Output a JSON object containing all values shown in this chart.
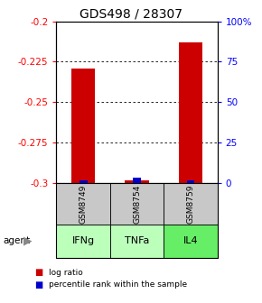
{
  "title": "GDS498 / 28307",
  "samples": [
    "GSM8749",
    "GSM8754",
    "GSM8759"
  ],
  "agents": [
    "IFNg",
    "TNFa",
    "IL4"
  ],
  "log_ratios": [
    -0.229,
    -0.298,
    -0.213
  ],
  "percentile_ranks": [
    2.0,
    3.5,
    2.0
  ],
  "ylim_left": [
    -0.3,
    -0.2
  ],
  "ylim_right": [
    0,
    100
  ],
  "yticks_left": [
    -0.3,
    -0.275,
    -0.25,
    -0.225,
    -0.2
  ],
  "yticks_right": [
    0,
    25,
    50,
    75,
    100
  ],
  "ytick_labels_left": [
    "-0.3",
    "-0.275",
    "-0.25",
    "-0.225",
    "-0.2"
  ],
  "ytick_labels_right": [
    "0",
    "25",
    "50",
    "75",
    "100%"
  ],
  "bar_color_red": "#cc0000",
  "bar_color_blue": "#0000cc",
  "agent_colors": [
    "#bbffbb",
    "#bbffbb",
    "#66ee66"
  ],
  "sample_box_color": "#c8c8c8",
  "legend_red_label": "log ratio",
  "legend_blue_label": "percentile rank within the sample",
  "title_fontsize": 10,
  "tick_fontsize": 7.5
}
